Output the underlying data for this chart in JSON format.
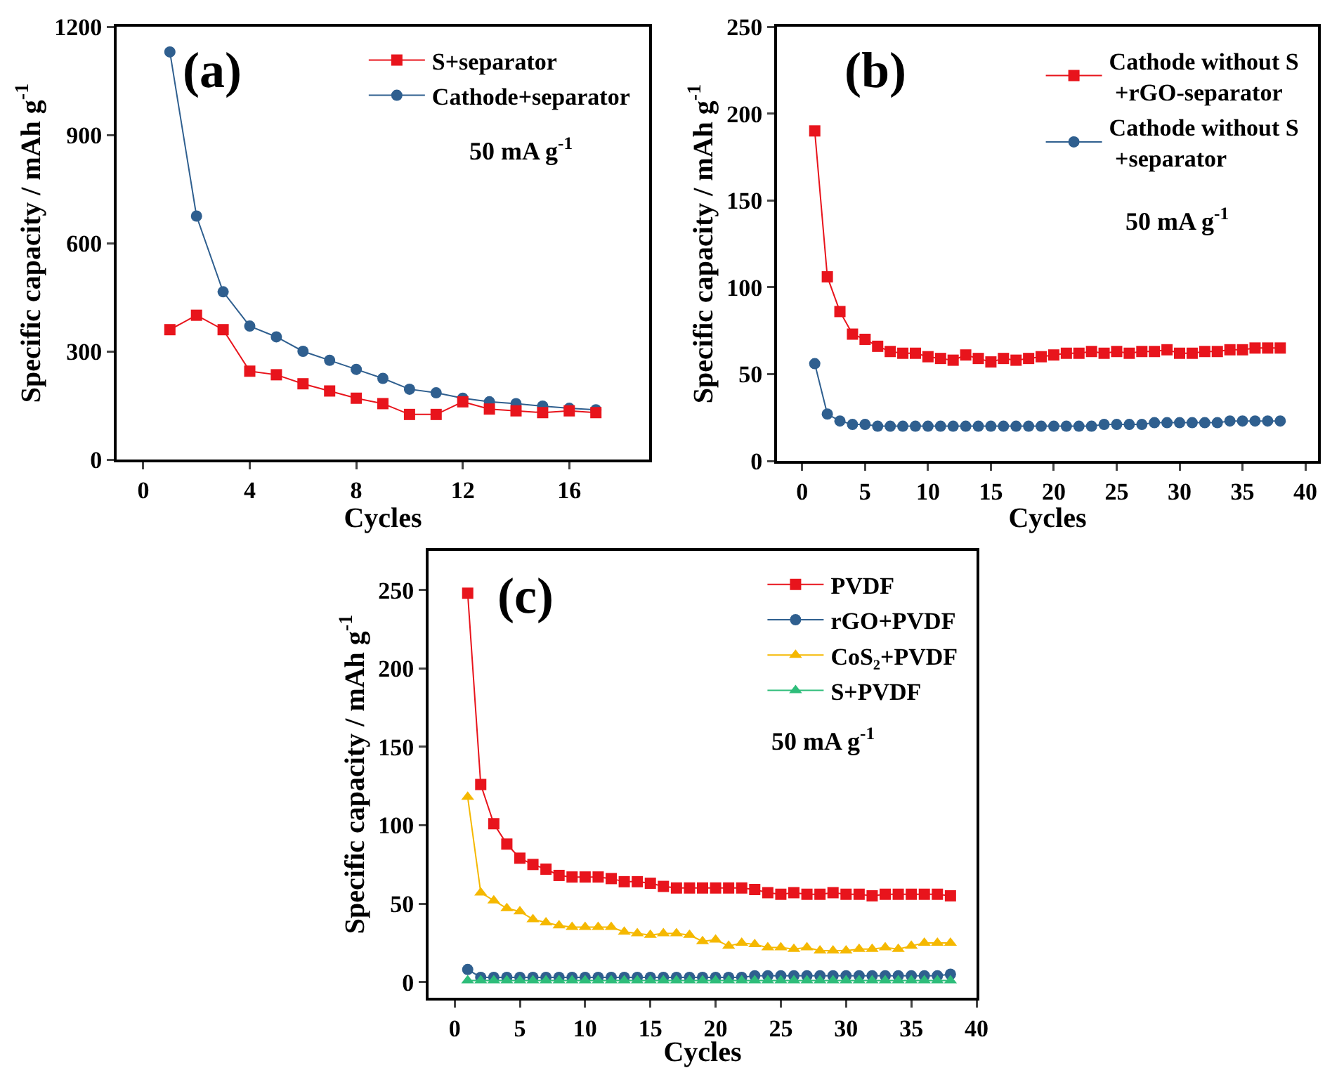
{
  "chart_data": [
    {
      "type": "line",
      "title": "(a)",
      "xlabel": "Cycles",
      "ylabel": "Specific capacity / mAh g$^{-1}$",
      "annotations": [
        "50 mA g$^{-1}$"
      ],
      "x": [
        1,
        2,
        3,
        4,
        5,
        6,
        7,
        8,
        9,
        10,
        11,
        12,
        13,
        14,
        15,
        16,
        17
      ],
      "xlim": [
        -1,
        19
      ],
      "xticks": [
        0,
        4,
        8,
        12,
        16
      ],
      "ylim": [
        0,
        1200
      ],
      "yticks": [
        0,
        300,
        600,
        900,
        1200
      ],
      "grid": false,
      "legend": "top right",
      "series": [
        {
          "name": "S+separator",
          "color": "#e8141c",
          "marker": "square",
          "values": [
            360,
            400,
            360,
            245,
            235,
            210,
            190,
            170,
            155,
            125,
            125,
            160,
            140,
            135,
            130,
            135,
            130
          ]
        },
        {
          "name": "Cathode+separator",
          "color": "#2f5f8f",
          "marker": "circle",
          "values": [
            1130,
            675,
            465,
            370,
            340,
            300,
            275,
            250,
            225,
            195,
            185,
            170,
            160,
            155,
            148,
            142,
            138
          ]
        }
      ]
    },
    {
      "type": "line",
      "title": "(b)",
      "xlabel": "Cycles",
      "ylabel": "Specific capacity / mAh g$^{-1}$",
      "annotations": [
        "50 mA g$^{-1}$"
      ],
      "x": [
        1,
        2,
        3,
        4,
        5,
        6,
        7,
        8,
        9,
        10,
        11,
        12,
        13,
        14,
        15,
        16,
        17,
        18,
        19,
        20,
        21,
        22,
        23,
        24,
        25,
        26,
        27,
        28,
        29,
        30,
        31,
        32,
        33,
        34,
        35,
        36,
        37,
        38
      ],
      "xlim": [
        -2,
        41
      ],
      "xticks": [
        0,
        5,
        10,
        15,
        20,
        25,
        30,
        35,
        40
      ],
      "ylim": [
        0,
        250
      ],
      "yticks": [
        0,
        50,
        100,
        150,
        200,
        250
      ],
      "grid": false,
      "legend": "top right",
      "series": [
        {
          "name": "Cathode without S +rGO-separator",
          "color": "#e8141c",
          "marker": "square",
          "values": [
            190,
            106,
            86,
            73,
            70,
            66,
            63,
            62,
            62,
            60,
            59,
            58,
            61,
            59,
            57,
            59,
            58,
            59,
            60,
            61,
            62,
            62,
            63,
            62,
            63,
            62,
            63,
            63,
            64,
            62,
            62,
            63,
            63,
            64,
            64,
            65,
            65,
            65
          ]
        },
        {
          "name": "Cathode without S +separator",
          "color": "#2f5f8f",
          "marker": "circle",
          "values": [
            56,
            27,
            23,
            21,
            21,
            20,
            20,
            20,
            20,
            20,
            20,
            20,
            20,
            20,
            20,
            20,
            20,
            20,
            20,
            20,
            20,
            20,
            20,
            21,
            21,
            21,
            21,
            22,
            22,
            22,
            22,
            22,
            22,
            23,
            23,
            23,
            23,
            23
          ]
        }
      ]
    },
    {
      "type": "line",
      "title": "(c)",
      "xlabel": "Cycles",
      "ylabel": "Specific capacity / mAh g$^{-1}$",
      "annotations": [
        "50 mA g$^{-1}$"
      ],
      "x": [
        1,
        2,
        3,
        4,
        5,
        6,
        7,
        8,
        9,
        10,
        11,
        12,
        13,
        14,
        15,
        16,
        17,
        18,
        19,
        20,
        21,
        22,
        23,
        24,
        25,
        26,
        27,
        28,
        29,
        30,
        31,
        32,
        33,
        34,
        35,
        36,
        37,
        38
      ],
      "xlim": [
        -2,
        40
      ],
      "xticks": [
        0,
        5,
        10,
        15,
        20,
        25,
        30,
        35,
        40
      ],
      "ylim": [
        -10,
        275
      ],
      "yticks": [
        0,
        50,
        100,
        150,
        200,
        250
      ],
      "grid": false,
      "legend": "top right",
      "series": [
        {
          "name": "PVDF",
          "color": "#e8141c",
          "marker": "square",
          "values": [
            248,
            126,
            101,
            88,
            79,
            75,
            72,
            68,
            67,
            67,
            67,
            66,
            64,
            64,
            63,
            61,
            60,
            60,
            60,
            60,
            60,
            60,
            59,
            57,
            56,
            57,
            56,
            56,
            57,
            56,
            56,
            55,
            56,
            56,
            56,
            56,
            56,
            55
          ]
        },
        {
          "name": "rGO+PVDF",
          "color": "#2f5f8f",
          "marker": "circle",
          "values": [
            8,
            3,
            3,
            3,
            3,
            3,
            3,
            3,
            3,
            3,
            3,
            3,
            3,
            3,
            3,
            3,
            3,
            3,
            3,
            3,
            3,
            3,
            4,
            4,
            4,
            4,
            4,
            4,
            4,
            4,
            4,
            4,
            4,
            4,
            4,
            4,
            4,
            5
          ]
        },
        {
          "name": "CoS₂+PVDF",
          "color": "#f5b800",
          "marker": "triangle",
          "values": [
            118,
            57,
            52,
            47,
            45,
            40,
            38,
            36,
            35,
            35,
            35,
            35,
            32,
            31,
            30,
            31,
            31,
            30,
            26,
            27,
            23,
            25,
            24,
            22,
            22,
            21,
            22,
            20,
            20,
            20,
            21,
            21,
            22,
            21,
            23,
            25,
            25,
            25
          ]
        },
        {
          "name": "S+PVDF",
          "color": "#2ebd7a",
          "marker": "triangle",
          "values": [
            1,
            1,
            1,
            1,
            1,
            1,
            1,
            1,
            1,
            1,
            1,
            1,
            1,
            1,
            1,
            1,
            1,
            1,
            1,
            1,
            1,
            1,
            1,
            1,
            1,
            1,
            1,
            1,
            1,
            1,
            1,
            1,
            1,
            1,
            1,
            1,
            1,
            1
          ]
        }
      ]
    }
  ]
}
